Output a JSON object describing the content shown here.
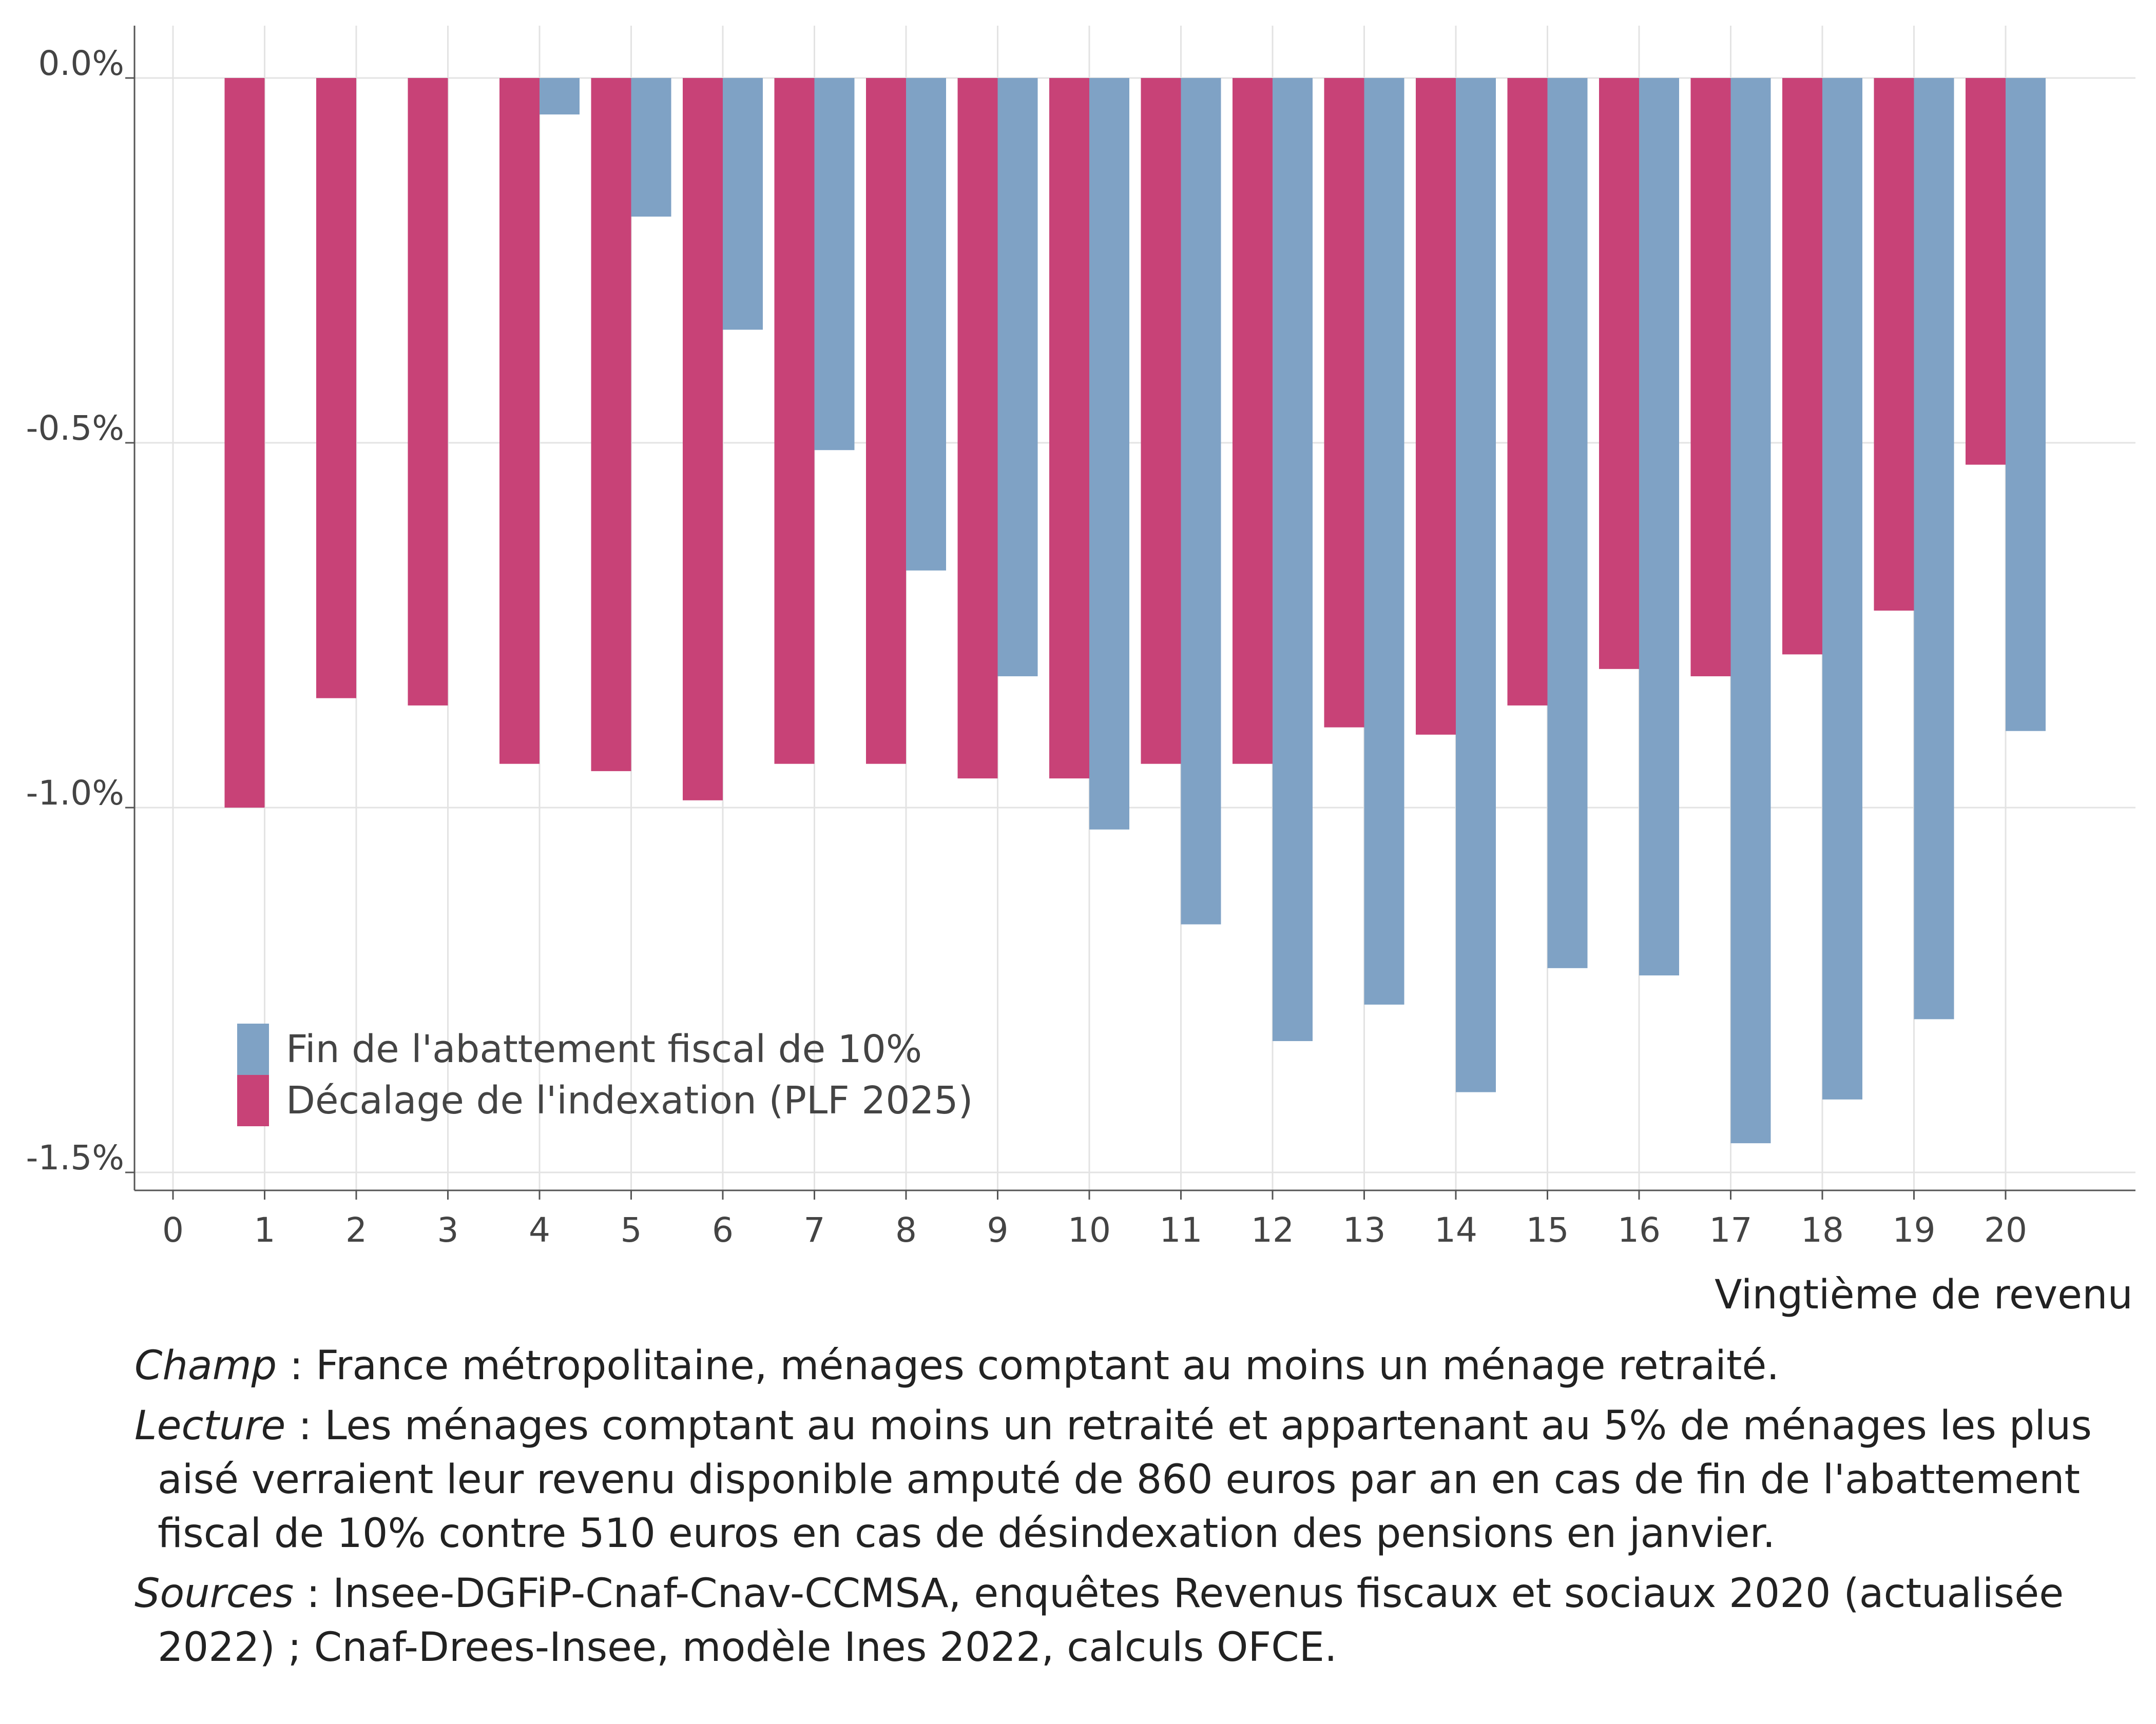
{
  "chart_data": {
    "type": "bar",
    "xlabel": "Vingtième de revenu",
    "ylabel": "",
    "x_ticks": [
      "0",
      "1",
      "2",
      "3",
      "4",
      "5",
      "6",
      "7",
      "8",
      "9",
      "10",
      "11",
      "12",
      "13",
      "14",
      "15",
      "16",
      "17",
      "18",
      "19",
      "20"
    ],
    "y_ticks": [
      "0.0%",
      "-0.5%",
      "-1.0%",
      "-1.5%"
    ],
    "ylim": [
      -1.5,
      0.0
    ],
    "grid": true,
    "legend_position": "bottom-left",
    "categories": [
      1,
      2,
      3,
      4,
      5,
      6,
      7,
      8,
      9,
      10,
      11,
      12,
      13,
      14,
      15,
      16,
      17,
      18,
      19,
      20
    ],
    "series": [
      {
        "name": "Décalage de l'indexation (PLF 2025)",
        "color": "#c84277",
        "values": [
          -1.0,
          -0.85,
          -0.86,
          -0.94,
          -0.95,
          -0.99,
          -0.94,
          -0.94,
          -0.96,
          -0.96,
          -0.94,
          -0.94,
          -0.89,
          -0.9,
          -0.86,
          -0.81,
          -0.82,
          -0.79,
          -0.73,
          -0.53
        ]
      },
      {
        "name": "Fin de l'abattement fiscal de 10%",
        "color": "#7fa2c5",
        "values": [
          0,
          0,
          0,
          -0.05,
          -0.19,
          -0.345,
          -0.51,
          -0.675,
          -0.82,
          -1.03,
          -1.16,
          -1.32,
          -1.27,
          -1.39,
          -1.22,
          -1.23,
          -1.46,
          -1.4,
          -1.29,
          -0.895
        ]
      }
    ],
    "legend_order": [
      "Fin de l'abattement fiscal de 10%",
      "Décalage de l'indexation (PLF 2025)"
    ]
  },
  "notes": [
    {
      "key": "Champ",
      "sep": " : ",
      "text": "France métropolitaine, ménages comptant au moins un ménage retraité."
    },
    {
      "key": "Lecture",
      "sep": " :  ",
      "text": "Les ménages comptant au moins un retraité et appartenant au 5% de ménages les plus aisé verraient leur revenu disponible amputé de 860 euros par an en cas de fin de l'abattement fiscal de 10% contre 510 euros en cas de désindexation des pensions en janvier."
    },
    {
      "key": "Sources",
      "sep": " : ",
      "text": "Insee-DGFiP-Cnaf-Cnav-CCMSA, enquêtes Revenus fiscaux et sociaux 2020 (actualisée 2022) ; Cnaf-Drees-Insee, modèle Ines 2022, calculs OFCE."
    }
  ]
}
